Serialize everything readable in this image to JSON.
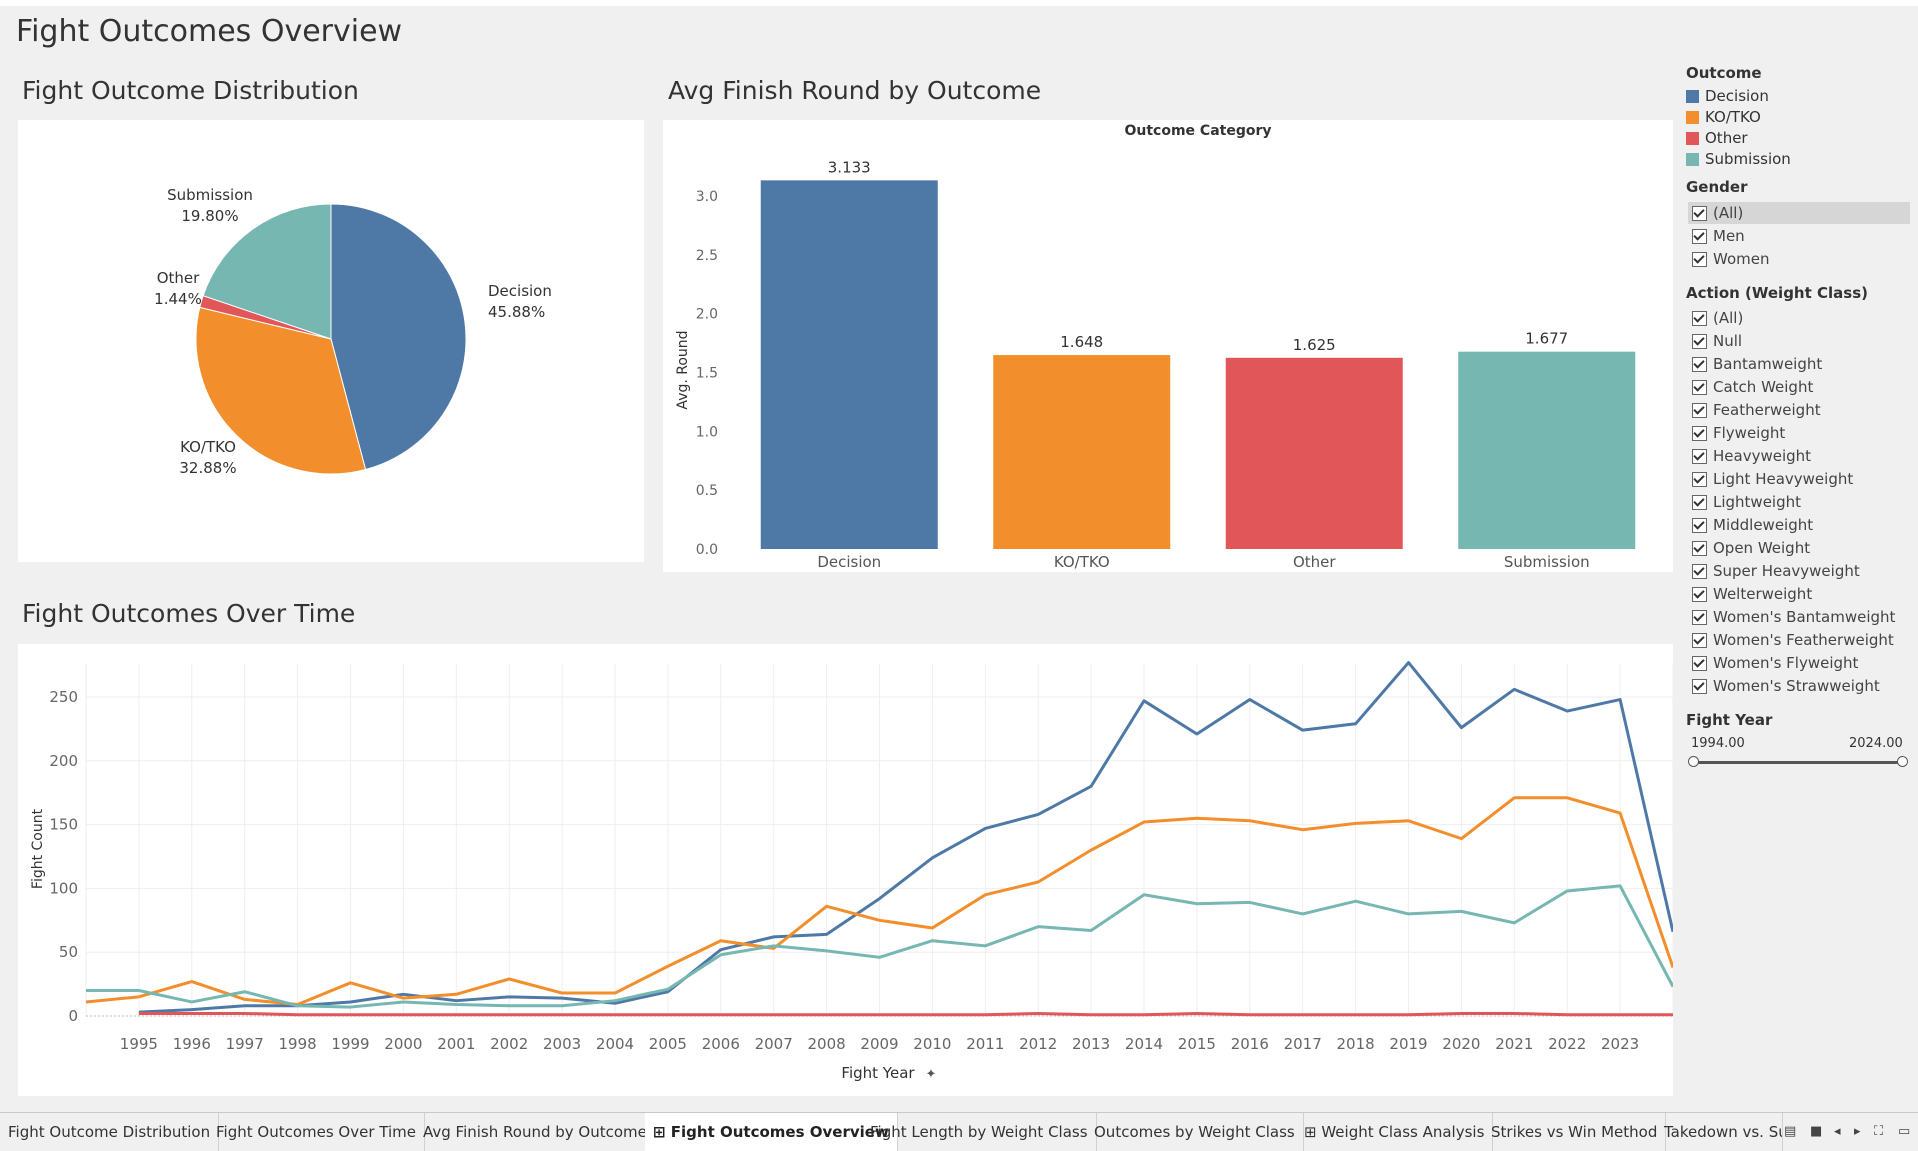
{
  "dashboard_title": "Fight Outcomes Overview",
  "sections": {
    "pie_title": "Fight Outcome Distribution",
    "bar_title": "Avg Finish Round by Outcome",
    "line_title": "Fight Outcomes Over Time"
  },
  "colors": {
    "Decision": "#4e79a7",
    "KO/TKO": "#f28e2b",
    "Other": "#e15759",
    "Submission": "#76b7b2"
  },
  "chart_data": [
    {
      "type": "pie",
      "slices": [
        {
          "label": "Decision",
          "pct_label": "45.88%",
          "value": 45.88
        },
        {
          "label": "KO/TKO",
          "pct_label": "32.88%",
          "value": 32.88
        },
        {
          "label": "Other",
          "pct_label": "1.44%",
          "value": 1.44
        },
        {
          "label": "Submission",
          "pct_label": "19.80%",
          "value": 19.8
        }
      ]
    },
    {
      "type": "bar",
      "header": "Outcome Category",
      "ylabel": "Avg. Round",
      "ylim": [
        0,
        3.2
      ],
      "yticks": [
        "0.0",
        "0.5",
        "1.0",
        "1.5",
        "2.0",
        "2.5",
        "3.0"
      ],
      "categories": [
        "Decision",
        "KO/TKO",
        "Other",
        "Submission"
      ],
      "values": [
        3.133,
        1.648,
        1.625,
        1.677
      ],
      "value_labels": [
        "3.133",
        "1.648",
        "1.625",
        "1.677"
      ]
    },
    {
      "type": "line",
      "xlabel": "Fight Year",
      "ylabel": "Fight Count",
      "ylim": [
        0,
        280
      ],
      "yticks": [
        "0",
        "50",
        "100",
        "150",
        "200",
        "250"
      ],
      "x": [
        1994,
        1995,
        1996,
        1997,
        1998,
        1999,
        2000,
        2001,
        2002,
        2003,
        2004,
        2005,
        2006,
        2007,
        2008,
        2009,
        2010,
        2011,
        2012,
        2013,
        2014,
        2015,
        2016,
        2017,
        2018,
        2019,
        2020,
        2021,
        2022,
        2023,
        2024
      ],
      "xtick_labels": [
        "1995",
        "1996",
        "1997",
        "1998",
        "1999",
        "2000",
        "2001",
        "2002",
        "2003",
        "2004",
        "2005",
        "2006",
        "2007",
        "2008",
        "2009",
        "2010",
        "2011",
        "2012",
        "2013",
        "2014",
        "2015",
        "2016",
        "2017",
        "2018",
        "2019",
        "2020",
        "2021",
        "2022",
        "2023"
      ],
      "series": [
        {
          "name": "Decision",
          "values": [
            null,
            3,
            5,
            8,
            8,
            11,
            17,
            12,
            15,
            14,
            10,
            19,
            52,
            62,
            64,
            92,
            124,
            147,
            158,
            180,
            247,
            221,
            248,
            224,
            229,
            277,
            226,
            256,
            239,
            248,
            66
          ]
        },
        {
          "name": "KO/TKO",
          "values": [
            11,
            15,
            27,
            13,
            9,
            26,
            14,
            17,
            29,
            18,
            18,
            39,
            59,
            53,
            86,
            75,
            69,
            95,
            105,
            130,
            152,
            155,
            153,
            146,
            151,
            153,
            139,
            171,
            171,
            159,
            38
          ]
        },
        {
          "name": "Other",
          "values": [
            null,
            2,
            2,
            2,
            1,
            1,
            1,
            1,
            1,
            1,
            1,
            1,
            1,
            1,
            1,
            1,
            1,
            1,
            2,
            1,
            1,
            2,
            1,
            1,
            1,
            1,
            2,
            2,
            1,
            1,
            1
          ]
        },
        {
          "name": "Submission",
          "values": [
            20,
            20,
            11,
            19,
            8,
            7,
            11,
            9,
            8,
            8,
            12,
            21,
            48,
            55,
            51,
            46,
            59,
            55,
            70,
            67,
            95,
            88,
            89,
            80,
            90,
            80,
            82,
            73,
            98,
            102,
            23
          ]
        }
      ]
    }
  ],
  "filters": {
    "outcome_legend_title": "Outcome",
    "outcome_items": [
      "Decision",
      "KO/TKO",
      "Other",
      "Submission"
    ],
    "gender_title": "Gender",
    "gender_items": [
      "(All)",
      "Men",
      "Women"
    ],
    "weight_title": "Action (Weight Class)",
    "weight_items": [
      "(All)",
      "Null",
      "Bantamweight",
      "Catch Weight",
      "Featherweight",
      "Flyweight",
      "Heavyweight",
      "Light Heavyweight",
      "Lightweight",
      "Middleweight",
      "Open Weight",
      "Super Heavyweight",
      "Welterweight",
      "Women's Bantamweight",
      "Women's Featherweight",
      "Women's Flyweight",
      "Women's Strawweight"
    ],
    "year_title": "Fight Year",
    "year_min_label": "1994.00",
    "year_max_label": "2024.00"
  },
  "tabs": [
    "Fight Outcome Distribution",
    "Fight Outcomes Over Time",
    "Avg Finish Round by Outcome",
    "Fight Outcomes Overview",
    "Fight Length by Weight Class",
    "Outcomes by Weight Class",
    "Weight Class Analysis",
    "Strikes vs Win Method",
    "Takedown vs. Su"
  ],
  "active_tab": "Fight Outcomes Overview"
}
